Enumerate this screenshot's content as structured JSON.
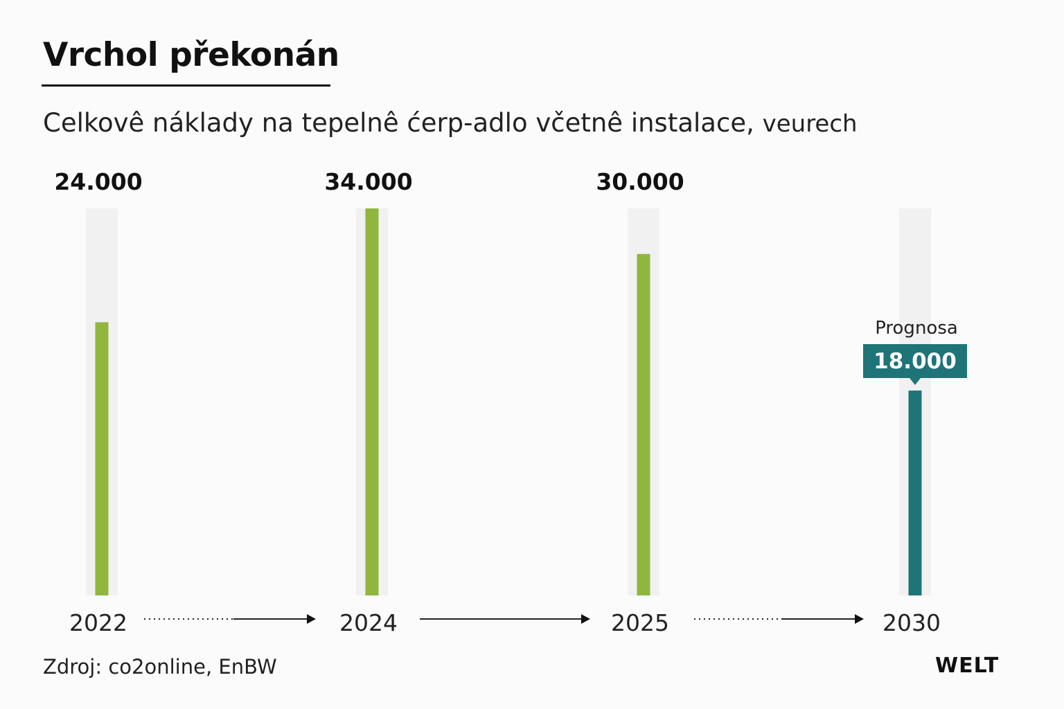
{
  "header": {
    "title": "Vrchol překonán",
    "subtitle": "Celkovê náklady na tepelnê ćerp-adlo včetnê instalace,",
    "unit": "veurech"
  },
  "footer": {
    "source": "Zdroj: co2online, EnBW",
    "brand": "WELT"
  },
  "colors": {
    "actual": "#8fb73e",
    "forecast": "#1f7478",
    "track": "#f1f1f1",
    "text": "#111111"
  },
  "chart_data": {
    "type": "bar",
    "categories": [
      "2022",
      "2024",
      "2025",
      "2030"
    ],
    "values": [
      24000,
      34000,
      30000,
      18000
    ],
    "value_labels": [
      "24.000",
      "34.000",
      "30.000",
      "18.000"
    ],
    "forecast_index": 3,
    "forecast_label": "Prognosa",
    "ylim": [
      0,
      34000
    ],
    "grid": false,
    "legend": "none",
    "timeline_arrows": [
      "dotted",
      "solid",
      "dotted"
    ]
  }
}
